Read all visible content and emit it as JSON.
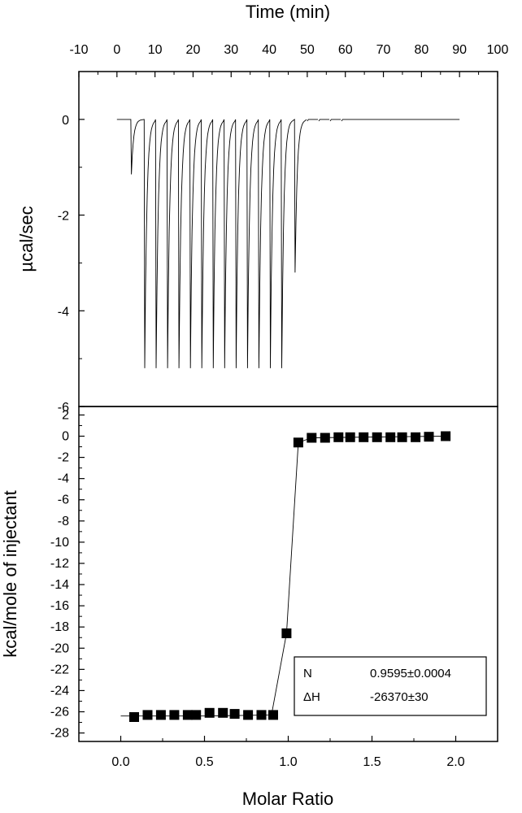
{
  "chart_data": [
    {
      "type": "line",
      "panel": "top",
      "xlabel": "Time (min)",
      "ylabel": "µcal/sec",
      "xlim": [
        -10,
        100
      ],
      "ylim": [
        -6,
        1
      ],
      "xticks": [
        -10,
        0,
        10,
        20,
        30,
        40,
        50,
        60,
        70,
        80,
        90,
        100
      ],
      "yticks": [
        0,
        -2,
        -4,
        -6
      ],
      "baseline": 0,
      "injections": [
        {
          "time": 3.8,
          "peak": -1.15
        },
        {
          "time": 7.3,
          "peak": -5.2
        },
        {
          "time": 10.3,
          "peak": -5.2
        },
        {
          "time": 13.3,
          "peak": -5.2
        },
        {
          "time": 16.3,
          "peak": -5.2
        },
        {
          "time": 19.3,
          "peak": -5.2
        },
        {
          "time": 22.3,
          "peak": -5.2
        },
        {
          "time": 25.3,
          "peak": -5.2
        },
        {
          "time": 28.3,
          "peak": -5.2
        },
        {
          "time": 31.3,
          "peak": -5.2
        },
        {
          "time": 34.3,
          "peak": -5.2
        },
        {
          "time": 37.3,
          "peak": -5.2
        },
        {
          "time": 40.3,
          "peak": -5.2
        },
        {
          "time": 43.3,
          "peak": -5.2
        },
        {
          "time": 46.8,
          "peak": -3.2
        }
      ]
    },
    {
      "type": "scatter",
      "panel": "bottom",
      "xlabel": "Molar Ratio",
      "ylabel": "kcal/mole of injectant",
      "xlim": [
        -0.25,
        2.25
      ],
      "ylim": [
        -28.8,
        2.8
      ],
      "xticks": [
        0.0,
        0.5,
        1.0,
        1.5,
        2.0
      ],
      "yticks": [
        2,
        0,
        -2,
        -4,
        -6,
        -8,
        -10,
        -12,
        -14,
        -16,
        -18,
        -20,
        -22,
        -24,
        -26,
        -28
      ],
      "points": [
        {
          "x": 0.08,
          "y": -26.5
        },
        {
          "x": 0.16,
          "y": -26.3
        },
        {
          "x": 0.24,
          "y": -26.3
        },
        {
          "x": 0.32,
          "y": -26.3
        },
        {
          "x": 0.4,
          "y": -26.3
        },
        {
          "x": 0.45,
          "y": -26.3
        },
        {
          "x": 0.53,
          "y": -26.1
        },
        {
          "x": 0.61,
          "y": -26.1
        },
        {
          "x": 0.68,
          "y": -26.2
        },
        {
          "x": 0.76,
          "y": -26.3
        },
        {
          "x": 0.84,
          "y": -26.3
        },
        {
          "x": 0.91,
          "y": -26.3
        },
        {
          "x": 0.99,
          "y": -18.6
        },
        {
          "x": 1.06,
          "y": -0.6
        },
        {
          "x": 1.14,
          "y": -0.15
        },
        {
          "x": 1.22,
          "y": -0.15
        },
        {
          "x": 1.3,
          "y": -0.1
        },
        {
          "x": 1.37,
          "y": -0.1
        },
        {
          "x": 1.45,
          "y": -0.1
        },
        {
          "x": 1.53,
          "y": -0.1
        },
        {
          "x": 1.61,
          "y": -0.1
        },
        {
          "x": 1.68,
          "y": -0.1
        },
        {
          "x": 1.76,
          "y": -0.1
        },
        {
          "x": 1.84,
          "y": -0.05
        },
        {
          "x": 1.94,
          "y": 0.0
        }
      ],
      "fit": [
        {
          "x": 0.0,
          "y": -26.4
        },
        {
          "x": 0.5,
          "y": -26.4
        },
        {
          "x": 0.9,
          "y": -26.3
        },
        {
          "x": 0.99,
          "y": -18.6
        },
        {
          "x": 1.06,
          "y": -0.6
        },
        {
          "x": 1.14,
          "y": -0.15
        },
        {
          "x": 1.94,
          "y": 0.0
        }
      ],
      "legend": {
        "rows": [
          {
            "key": "N",
            "value": "0.9595±0.0004"
          },
          {
            "key": "ΔH",
            "value": "-26370±30"
          }
        ]
      }
    }
  ]
}
